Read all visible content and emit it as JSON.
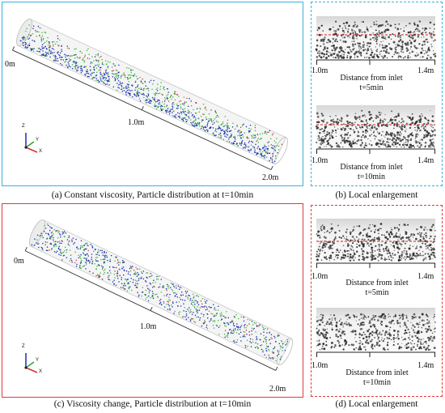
{
  "colors": {
    "panel_a_border": "#3fb0d8",
    "panel_b_border": "#3fb0d8",
    "panel_c_border": "#e0393b",
    "panel_d_border": "#e0393b",
    "particle_blue": "#1a2fb0",
    "particle_green": "#3db33d",
    "particle_red": "#d93030",
    "particle_gray": "#444444",
    "red_dashed_line": "#d62020"
  },
  "panel_a": {
    "caption": "(a) Constant viscosity, Particle distribution at t=10min",
    "label_start": "0m",
    "label_mid": "1.0m",
    "label_end": "2.0m",
    "axis_z": "Z",
    "axis_x": "X",
    "axis_y": "Y"
  },
  "panel_b": {
    "caption": "(b) Local enlargement",
    "top": {
      "left_label": "1.0m",
      "right_label": "1.4m",
      "axis_title": "Distance from inlet",
      "time": "t=5min",
      "has_red_line": true
    },
    "bottom": {
      "left_label": "1.0m",
      "right_label": "1.4m",
      "axis_title": "Distance from inlet",
      "time": "t=10min",
      "has_red_line": true
    }
  },
  "panel_c": {
    "caption": "(c) Viscosity change, Particle distribution at t=10min",
    "label_start": "0m",
    "label_mid": "1.0m",
    "label_end": "2.0m",
    "axis_z": "Z",
    "axis_x": "X",
    "axis_y": "Y"
  },
  "panel_d": {
    "caption": "(d) Local enlargement",
    "top": {
      "left_label": "1.0m",
      "right_label": "1.4m",
      "axis_title": "Distance from inlet",
      "time": "t=5min",
      "has_red_line": true
    },
    "bottom": {
      "left_label": "1.0m",
      "right_label": "1.4m",
      "axis_title": "Distance from inlet",
      "time": "t=10min",
      "has_red_line": false
    }
  }
}
